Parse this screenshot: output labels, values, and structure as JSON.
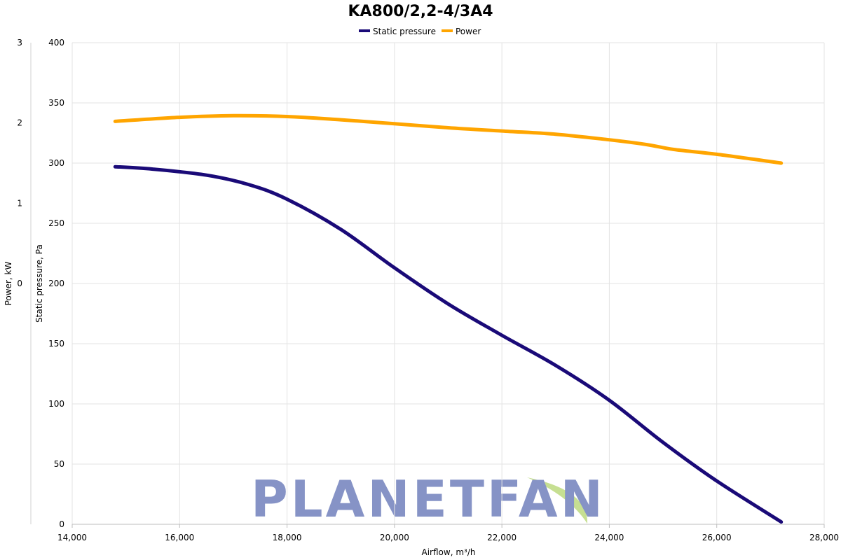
{
  "chart_data": {
    "type": "line",
    "title": "KA800/2,2-4/3A4",
    "xlabel": "Airflow, m³/h",
    "ylabel": "Static pressure, Pa",
    "y2label": "Power, kW",
    "xlim": [
      14000,
      28000
    ],
    "ylim": [
      0,
      400
    ],
    "y2lim": [
      -3,
      3
    ],
    "x_ticks": [
      14000,
      16000,
      18000,
      20000,
      22000,
      24000,
      26000,
      28000
    ],
    "x_tick_labels": [
      "14,000",
      "16,000",
      "18,000",
      "20,000",
      "22,000",
      "24,000",
      "26,000",
      "28,000"
    ],
    "y_ticks": [
      0,
      50,
      100,
      150,
      200,
      250,
      300,
      350,
      400
    ],
    "y2_ticks": [
      0,
      1,
      2,
      3
    ],
    "grid": true,
    "legend_position": "top-center",
    "series": [
      {
        "name": "Static pressure",
        "axis": "left",
        "color": "#1a0a78",
        "x": [
          14800,
          15500,
          16500,
          17300,
          18000,
          19000,
          20000,
          21000,
          22000,
          23000,
          24000,
          25000,
          26000,
          27200
        ],
        "y": [
          297,
          295,
          290,
          282,
          270,
          245,
          213,
          183,
          157,
          132,
          103,
          68,
          36,
          2
        ]
      },
      {
        "name": "Power",
        "axis": "right",
        "color": "#ffa500",
        "x": [
          14800,
          16000,
          17000,
          18000,
          19000,
          20000,
          21000,
          22000,
          23000,
          24000,
          24700,
          25200,
          26000,
          27200
        ],
        "y": [
          2.02,
          2.07,
          2.09,
          2.08,
          2.04,
          1.99,
          1.94,
          1.9,
          1.86,
          1.79,
          1.73,
          1.67,
          1.61,
          1.5
        ]
      }
    ]
  },
  "watermark": {
    "text": "PLANETFAN",
    "color": "#8693c6",
    "leaf_color": "#c6df92"
  }
}
